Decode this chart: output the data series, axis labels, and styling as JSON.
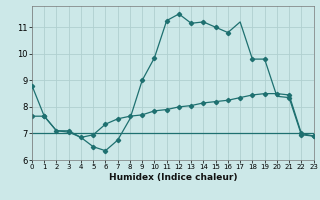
{
  "xlabel": "Humidex (Indice chaleur)",
  "bg_color": "#cce8e8",
  "grid_color": "#b0d0d0",
  "line_color": "#1e7070",
  "line1_x": [
    0,
    1,
    2,
    3,
    4,
    5,
    6,
    7,
    8,
    9,
    10,
    11,
    12,
    13,
    14,
    15,
    16,
    17,
    18,
    19,
    20,
    21,
    22,
    23
  ],
  "line1_y": [
    8.8,
    7.65,
    7.1,
    7.1,
    6.85,
    6.5,
    6.35,
    6.75,
    7.55,
    9.0,
    9.85,
    11.25,
    11.5,
    11.15,
    11.2,
    11.0,
    10.8,
    11.2,
    9.8,
    9.8,
    8.4,
    8.35,
    6.95,
    6.9
  ],
  "line1_markers": [
    1,
    1,
    0,
    1,
    0,
    1,
    1,
    1,
    0,
    1,
    1,
    1,
    1,
    1,
    1,
    1,
    1,
    0,
    1,
    1,
    0,
    1,
    1,
    1
  ],
  "line2_x": [
    0,
    1,
    2,
    3,
    4,
    5,
    6,
    7,
    8,
    9,
    10,
    11,
    12,
    13,
    14,
    15,
    16,
    17,
    18,
    19,
    20,
    21,
    22,
    23
  ],
  "line2_y": [
    7.0,
    7.0,
    7.0,
    7.0,
    7.0,
    7.0,
    7.0,
    7.0,
    7.0,
    7.0,
    7.0,
    7.0,
    7.0,
    7.0,
    7.0,
    7.0,
    7.0,
    7.0,
    7.0,
    7.0,
    7.0,
    7.0,
    7.0,
    7.0
  ],
  "line3_x": [
    0,
    1,
    2,
    3,
    4,
    5,
    6,
    7,
    8,
    9,
    10,
    11,
    12,
    13,
    14,
    15,
    16,
    17,
    18,
    19,
    20,
    21,
    22,
    23
  ],
  "line3_y": [
    7.65,
    7.65,
    7.1,
    7.05,
    6.85,
    6.95,
    7.35,
    7.55,
    7.65,
    7.7,
    7.85,
    7.9,
    8.0,
    8.05,
    8.15,
    8.2,
    8.25,
    8.35,
    8.45,
    8.5,
    8.5,
    8.45,
    7.0,
    6.9
  ],
  "xlim": [
    0,
    23
  ],
  "ylim": [
    6.0,
    11.8
  ],
  "yticks": [
    6,
    7,
    8,
    9,
    10,
    11
  ],
  "xticks": [
    0,
    1,
    2,
    3,
    4,
    5,
    6,
    7,
    8,
    9,
    10,
    11,
    12,
    13,
    14,
    15,
    16,
    17,
    18,
    19,
    20,
    21,
    22,
    23
  ]
}
